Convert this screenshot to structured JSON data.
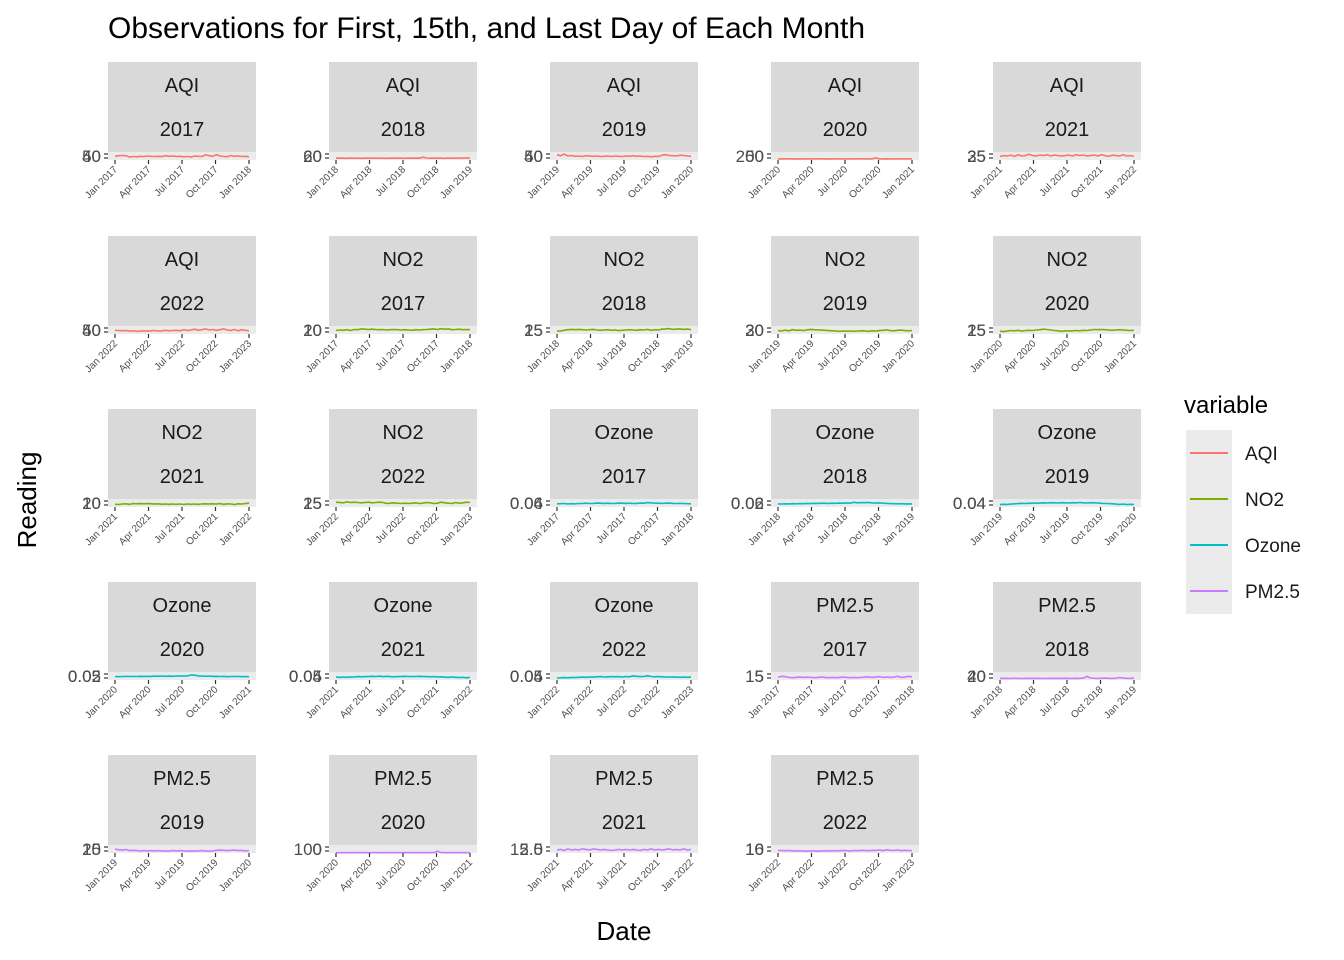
{
  "chart_data": {
    "type": "line",
    "title": "Observations for First, 15th, and Last Day of Each Month",
    "xlabel": "Date",
    "ylabel": "Reading",
    "legend": {
      "title": "variable",
      "position": "right",
      "entries": [
        {
          "name": "AQI",
          "color": "#F8766D"
        },
        {
          "name": "NO2",
          "color": "#7CAE00"
        },
        {
          "name": "Ozone",
          "color": "#00BFC4"
        },
        {
          "name": "PM2.5",
          "color": "#C77CFF"
        }
      ]
    },
    "x_ticks_by_year": {
      "2017": [
        "Jan 2017",
        "Apr 2017",
        "Jul 2017",
        "Oct 2017",
        "Jan 2018"
      ],
      "2018": [
        "Jan 2018",
        "Apr 2018",
        "Jul 2018",
        "Oct 2018",
        "Jan 2019"
      ],
      "2019": [
        "Jan 2019",
        "Apr 2019",
        "Jul 2019",
        "Oct 2019",
        "Jan 2020"
      ],
      "2020": [
        "Jan 2020",
        "Apr 2020",
        "Jul 2020",
        "Oct 2020",
        "Jan 2021"
      ],
      "2021": [
        "Jan 2021",
        "Apr 2021",
        "Jul 2021",
        "Oct 2021",
        "Jan 2022"
      ],
      "2022": [
        "Jan 2022",
        "Apr 2022",
        "Jul 2022",
        "Oct 2022",
        "Jan 2023"
      ]
    },
    "panels": [
      {
        "variable": "AQI",
        "year": "2017",
        "ylim": [
          30,
          60
        ],
        "y_ticks": [
          "40",
          "50"
        ],
        "values": [
          44,
          46,
          47,
          46,
          41,
          43,
          42,
          44,
          43,
          45,
          44,
          43,
          44,
          43,
          46,
          44,
          45,
          43,
          44,
          42,
          43,
          41,
          45,
          44,
          43,
          49,
          46,
          44,
          50,
          45,
          43,
          42,
          47,
          44,
          45,
          43,
          44,
          42
        ]
      },
      {
        "variable": "AQI",
        "year": "2018",
        "ylim": [
          10,
          100
        ],
        "y_ticks": [
          "20",
          "60"
        ],
        "values": [
          30,
          31,
          30,
          29,
          31,
          30,
          30,
          29,
          31,
          30,
          30,
          31,
          30,
          30,
          29,
          30,
          31,
          30,
          30,
          29,
          31,
          30,
          31,
          30,
          42,
          33,
          30,
          31,
          30,
          30,
          29,
          31,
          30,
          32,
          30,
          33,
          34,
          30
        ]
      },
      {
        "variable": "AQI",
        "year": "2019",
        "ylim": [
          30,
          60
        ],
        "y_ticks": [
          "40",
          "50"
        ],
        "values": [
          50,
          46,
          52,
          45,
          47,
          44,
          45,
          43,
          46,
          45,
          44,
          45,
          43,
          44,
          45,
          43,
          45,
          44,
          43,
          45,
          44,
          46,
          44,
          45,
          43,
          44,
          42,
          44,
          43,
          48,
          50,
          47,
          46,
          45,
          48,
          47,
          45,
          44
        ]
      },
      {
        "variable": "AQI",
        "year": "2020",
        "ylim": [
          20,
          230
        ],
        "y_ticks": [
          "50",
          "200"
        ],
        "values": [
          50,
          50,
          52,
          51,
          50,
          49,
          51,
          50,
          52,
          51,
          50,
          51,
          52,
          50,
          51,
          50,
          52,
          51,
          50,
          52,
          51,
          50,
          52,
          51,
          52,
          50,
          51,
          75,
          52,
          50,
          51,
          50,
          52,
          51,
          50,
          51,
          52,
          50
        ]
      },
      {
        "variable": "AQI",
        "year": "2021",
        "ylim": [
          20,
          38
        ],
        "y_ticks": [
          "25",
          "35"
        ],
        "values": [
          28,
          30,
          29,
          31,
          28,
          32,
          29,
          30,
          33,
          30,
          29,
          31,
          30,
          32,
          29,
          31,
          30,
          29,
          30,
          31,
          29,
          32,
          30,
          31,
          29,
          30,
          31,
          29,
          32,
          30,
          28,
          31,
          30,
          29,
          32,
          29,
          30,
          28
        ]
      },
      {
        "variable": "AQI",
        "year": "2022",
        "ylim": [
          30,
          60
        ],
        "y_ticks": [
          "40",
          "50"
        ],
        "values": [
          44,
          43,
          42,
          43,
          41,
          42,
          40,
          41,
          42,
          41,
          42,
          43,
          41,
          42,
          44,
          42,
          43,
          44,
          42,
          46,
          43,
          45,
          48,
          44,
          46,
          49,
          45,
          47,
          44,
          46,
          49,
          45,
          43,
          47,
          42,
          46,
          44,
          42
        ]
      },
      {
        "variable": "NO2",
        "year": "2017",
        "ylim": [
          5,
          35
        ],
        "y_ticks": [
          "10",
          "20"
        ],
        "values": [
          18,
          20,
          19,
          21,
          18,
          22,
          21,
          24,
          23,
          22,
          23,
          22,
          21,
          22,
          20,
          21,
          22,
          21,
          20,
          21,
          20,
          19,
          21,
          20,
          21,
          22,
          23,
          24,
          22,
          25,
          23,
          24,
          21,
          22,
          23,
          21,
          22,
          21
        ]
      },
      {
        "variable": "NO2",
        "year": "2018",
        "ylim": [
          5,
          33
        ],
        "y_ticks": [
          "15",
          "25"
        ],
        "values": [
          15,
          16,
          18,
          20,
          21,
          20,
          21,
          20,
          19,
          20,
          21,
          19,
          18,
          19,
          20,
          18,
          19,
          17,
          18,
          19,
          20,
          19,
          18,
          20,
          19,
          21,
          18,
          20,
          19,
          22,
          23,
          24,
          21,
          22,
          23,
          21,
          22,
          20
        ]
      },
      {
        "variable": "NO2",
        "year": "2019",
        "ylim": [
          5,
          40
        ],
        "y_ticks": [
          "20",
          "30"
        ],
        "values": [
          20,
          18,
          22,
          19,
          24,
          21,
          22,
          20,
          23,
          25,
          24,
          23,
          22,
          21,
          20,
          19,
          18,
          17,
          18,
          17,
          18,
          17,
          18,
          19,
          18,
          17,
          19,
          18,
          20,
          21,
          23,
          20,
          19,
          21,
          22,
          20,
          19,
          20
        ]
      },
      {
        "variable": "NO2",
        "year": "2020",
        "ylim": [
          5,
          35
        ],
        "y_ticks": [
          "15",
          "25"
        ],
        "values": [
          15,
          14,
          16,
          18,
          17,
          19,
          16,
          18,
          19,
          18,
          20,
          21,
          23,
          22,
          20,
          18,
          17,
          15,
          17,
          16,
          17,
          18,
          17,
          19,
          18,
          20,
          22,
          21,
          22,
          21,
          20,
          19,
          20,
          21,
          20,
          19,
          18,
          19
        ]
      },
      {
        "variable": "NO2",
        "year": "2021",
        "ylim": [
          5,
          40
        ],
        "y_ticks": [
          "10",
          "20"
        ],
        "values": [
          17,
          16,
          18,
          19,
          17,
          20,
          19,
          20,
          19,
          20,
          19,
          18,
          19,
          17,
          18,
          17,
          18,
          17,
          18,
          16,
          18,
          17,
          18,
          17,
          18,
          19,
          18,
          19,
          18,
          20,
          17,
          19,
          18,
          16,
          19,
          18,
          20,
          22
        ]
      },
      {
        "variable": "NO2",
        "year": "2022",
        "ylim": [
          10,
          35
        ],
        "y_ticks": [
          "15",
          "25"
        ],
        "values": [
          25,
          24,
          23,
          26,
          24,
          25,
          24,
          23,
          24,
          25,
          23,
          24,
          25,
          24,
          21,
          22,
          23,
          22,
          21,
          22,
          21,
          22,
          23,
          21,
          22,
          24,
          23,
          21,
          22,
          25,
          23,
          22,
          21,
          24,
          22,
          23,
          25,
          24
        ]
      },
      {
        "variable": "Ozone",
        "year": "2017",
        "ylim": [
          0.02,
          0.075
        ],
        "y_ticks": [
          "0.04",
          "0.06"
        ],
        "values": [
          0.042,
          0.043,
          0.044,
          0.041,
          0.043,
          0.042,
          0.044,
          0.045,
          0.046,
          0.044,
          0.045,
          0.047,
          0.046,
          0.045,
          0.046,
          0.044,
          0.045,
          0.047,
          0.046,
          0.045,
          0.046,
          0.044,
          0.045,
          0.047,
          0.046,
          0.05,
          0.048,
          0.047,
          0.046,
          0.045,
          0.046,
          0.047,
          0.045,
          0.044,
          0.045,
          0.044,
          0.043,
          0.042
        ]
      },
      {
        "variable": "Ozone",
        "year": "2018",
        "ylim": [
          0.01,
          0.075
        ],
        "y_ticks": [
          "0.02",
          "0.06"
        ],
        "values": [
          0.035,
          0.034,
          0.036,
          0.035,
          0.037,
          0.036,
          0.038,
          0.037,
          0.039,
          0.038,
          0.04,
          0.039,
          0.041,
          0.04,
          0.039,
          0.041,
          0.04,
          0.042,
          0.041,
          0.043,
          0.042,
          0.048,
          0.044,
          0.046,
          0.045,
          0.047,
          0.043,
          0.042,
          0.044,
          0.041,
          0.039,
          0.038,
          0.037,
          0.036,
          0.037,
          0.035,
          0.036,
          0.035
        ]
      },
      {
        "variable": "Ozone",
        "year": "2019",
        "ylim": [
          0.015,
          0.065
        ],
        "y_ticks": [
          "0.04",
          "0.04"
        ],
        "values": [
          0.03,
          0.032,
          0.031,
          0.033,
          0.035,
          0.036,
          0.038,
          0.037,
          0.039,
          0.038,
          0.04,
          0.039,
          0.041,
          0.04,
          0.042,
          0.041,
          0.04,
          0.042,
          0.041,
          0.04,
          0.042,
          0.041,
          0.043,
          0.041,
          0.04,
          0.042,
          0.041,
          0.04,
          0.038,
          0.037,
          0.036,
          0.035,
          0.033,
          0.031,
          0.033,
          0.03,
          0.032,
          0.031
        ]
      },
      {
        "variable": "Ozone",
        "year": "2020",
        "ylim": [
          0.01,
          0.07
        ],
        "y_ticks": [
          "0.02",
          "0.05"
        ],
        "values": [
          0.036,
          0.035,
          0.036,
          0.037,
          0.036,
          0.037,
          0.036,
          0.038,
          0.037,
          0.038,
          0.037,
          0.039,
          0.038,
          0.04,
          0.038,
          0.039,
          0.038,
          0.04,
          0.039,
          0.041,
          0.04,
          0.048,
          0.046,
          0.041,
          0.039,
          0.038,
          0.04,
          0.037,
          0.038,
          0.036,
          0.037,
          0.035,
          0.036,
          0.037,
          0.036,
          0.035,
          0.036,
          0.035
        ]
      },
      {
        "variable": "Ozone",
        "year": "2021",
        "ylim": [
          0.02,
          0.07
        ],
        "y_ticks": [
          "0.04",
          "0.05"
        ],
        "values": [
          0.038,
          0.036,
          0.039,
          0.037,
          0.038,
          0.039,
          0.041,
          0.04,
          0.042,
          0.041,
          0.043,
          0.042,
          0.044,
          0.041,
          0.043,
          0.041,
          0.04,
          0.042,
          0.041,
          0.043,
          0.042,
          0.041,
          0.042,
          0.043,
          0.041,
          0.042,
          0.04,
          0.041,
          0.039,
          0.04,
          0.038,
          0.037,
          0.039,
          0.037,
          0.035,
          0.037,
          0.034,
          0.037
        ]
      },
      {
        "variable": "Ozone",
        "year": "2022",
        "ylim": [
          0.02,
          0.07
        ],
        "y_ticks": [
          "0.04",
          "0.05"
        ],
        "values": [
          0.033,
          0.034,
          0.035,
          0.034,
          0.036,
          0.035,
          0.037,
          0.038,
          0.037,
          0.039,
          0.038,
          0.04,
          0.041,
          0.039,
          0.04,
          0.041,
          0.04,
          0.041,
          0.039,
          0.041,
          0.04,
          0.046,
          0.043,
          0.041,
          0.042,
          0.047,
          0.042,
          0.04,
          0.041,
          0.04,
          0.039,
          0.038,
          0.039,
          0.038,
          0.037,
          0.038,
          0.037,
          0.038
        ]
      },
      {
        "variable": "PM2.5",
        "year": "2017",
        "ylim": [
          2,
          30
        ],
        "y_ticks": [
          "5",
          "15"
        ],
        "values": [
          12,
          15,
          14,
          11,
          10,
          11,
          12,
          11,
          12,
          11,
          10,
          11,
          12,
          11,
          10,
          11,
          10,
          11,
          12,
          11,
          10,
          11,
          10,
          11,
          12,
          13,
          11,
          12,
          14,
          11,
          12,
          11,
          12,
          15,
          11,
          12,
          15,
          13
        ]
      },
      {
        "variable": "PM2.5",
        "year": "2018",
        "ylim": [
          5,
          60
        ],
        "y_ticks": [
          "20",
          "40"
        ],
        "values": [
          16,
          17,
          16,
          16,
          17,
          16,
          15,
          16,
          16,
          17,
          16,
          16,
          15,
          16,
          16,
          17,
          16,
          16,
          17,
          16,
          15,
          17,
          16,
          18,
          30,
          19,
          17,
          16,
          17,
          18,
          17,
          16,
          17,
          22,
          18,
          17,
          16,
          18
        ]
      },
      {
        "variable": "PM2.5",
        "year": "2019",
        "ylim": [
          5,
          35
        ],
        "y_ticks": [
          "15",
          "20"
        ],
        "values": [
          20,
          17,
          16,
          18,
          14,
          15,
          14,
          13,
          14,
          13,
          14,
          13,
          14,
          13,
          12,
          13,
          14,
          13,
          14,
          13,
          12,
          13,
          12,
          13,
          14,
          13,
          12,
          13,
          15,
          16,
          15,
          14,
          15,
          16,
          14,
          15,
          13,
          14
        ]
      },
      {
        "variable": "PM2.5",
        "year": "2020",
        "ylim": [
          0,
          200
        ],
        "y_ticks": [
          "0",
          "100"
        ],
        "values": [
          8,
          8,
          9,
          8,
          8,
          9,
          8,
          8,
          9,
          8,
          8,
          9,
          8,
          8,
          9,
          8,
          8,
          9,
          8,
          9,
          8,
          9,
          8,
          9,
          8,
          9,
          8,
          9,
          44,
          9,
          8,
          9,
          8,
          9,
          8,
          9,
          8,
          8
        ]
      },
      {
        "variable": "PM2.5",
        "year": "2021",
        "ylim": [
          3.5,
          18
        ],
        "y_ticks": [
          "5.0",
          "12.5"
        ],
        "values": [
          9,
          10,
          8,
          11,
          9,
          10,
          9,
          11,
          10,
          9,
          11,
          10,
          9,
          10,
          9,
          8,
          9,
          10,
          9,
          10,
          9,
          10,
          9,
          8,
          10,
          9,
          11,
          9,
          10,
          9,
          10,
          11,
          9,
          10,
          9,
          11,
          9,
          10
        ]
      },
      {
        "variable": "PM2.5",
        "year": "2022",
        "ylim": [
          3,
          38
        ],
        "y_ticks": [
          "10",
          "16"
        ],
        "values": [
          14,
          14,
          13,
          14,
          12,
          13,
          12,
          12,
          11,
          12,
          12,
          11,
          12,
          13,
          12,
          13,
          12,
          13,
          14,
          13,
          12,
          14,
          13,
          15,
          14,
          13,
          15,
          14,
          16,
          13,
          17,
          15,
          14,
          16,
          13,
          15,
          14,
          13
        ]
      }
    ]
  }
}
